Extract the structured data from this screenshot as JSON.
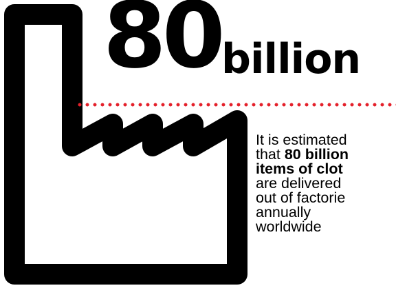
{
  "headline": {
    "number": "80",
    "unit": "billion"
  },
  "caption": {
    "line1": "It is estimated",
    "line2_prefix": "that ",
    "line2_bold": "80 billion",
    "line3_bold": "items of clot",
    "line4": "are delivered",
    "line5": "out of factorie",
    "line6": "annually",
    "line7": "worldwide"
  },
  "colors": {
    "accent_dots": "#e4202a",
    "ink": "#000000",
    "background": "#ffffff"
  },
  "icons": [
    "factory-icon"
  ]
}
